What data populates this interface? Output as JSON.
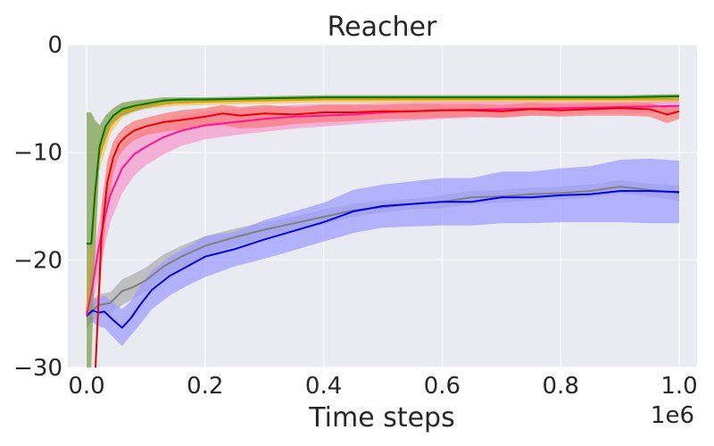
{
  "chart_data": {
    "type": "line",
    "title": "Reacher",
    "xlabel": "Time steps",
    "ylabel": "",
    "x_offset_text": "1e6",
    "xlim": [
      0,
      1000000
    ],
    "ylim": [
      -30,
      0
    ],
    "x_ticks": [
      0,
      200000,
      400000,
      600000,
      800000,
      1000000
    ],
    "x_tick_labels": [
      "0.0",
      "0.2",
      "0.4",
      "0.6",
      "0.8",
      "1.0"
    ],
    "y_ticks": [
      -30,
      -20,
      -10,
      0
    ],
    "y_tick_labels": [
      "−30",
      "−20",
      "−10",
      "0"
    ],
    "grid": true,
    "legend": "none",
    "series": [
      {
        "color": "#808080",
        "band_color": "#b0b0b0",
        "x": [
          0,
          20000,
          40000,
          60000,
          80000,
          100000,
          130000,
          160000,
          200000,
          250000,
          300000,
          350000,
          400000,
          450000,
          500000,
          550000,
          600000,
          650000,
          700000,
          750000,
          800000,
          850000,
          900000,
          950000,
          1000000
        ],
        "y": [
          -25.3,
          -24.2,
          -24.0,
          -22.9,
          -22.5,
          -21.9,
          -20.6,
          -19.7,
          -18.7,
          -17.9,
          -17.2,
          -16.6,
          -16.0,
          -15.4,
          -15.1,
          -14.8,
          -14.6,
          -14.2,
          -14.1,
          -13.9,
          -13.8,
          -13.6,
          -13.2,
          -13.5,
          -13.8
        ],
        "lower": [
          -26.3,
          -25.2,
          -25.0,
          -24.2,
          -23.6,
          -23.0,
          -21.6,
          -20.7,
          -19.6,
          -18.7,
          -17.9,
          -17.2,
          -16.7,
          -16.0,
          -15.6,
          -15.3,
          -15.2,
          -14.8,
          -14.7,
          -14.5,
          -14.4,
          -14.2,
          -13.8,
          -14.1,
          -14.5
        ],
        "upper": [
          -24.3,
          -23.2,
          -23.0,
          -21.8,
          -21.3,
          -20.7,
          -19.5,
          -18.7,
          -17.8,
          -17.1,
          -16.5,
          -16.0,
          -15.3,
          -14.8,
          -14.5,
          -14.3,
          -14.0,
          -13.6,
          -13.5,
          -13.3,
          -13.2,
          -13.0,
          -12.6,
          -12.9,
          -13.1
        ]
      },
      {
        "color": "#0000ee",
        "band_color": "#9d9dff",
        "x": [
          0,
          10000,
          20000,
          30000,
          45000,
          60000,
          75000,
          90000,
          110000,
          140000,
          170000,
          200000,
          250000,
          300000,
          350000,
          400000,
          450000,
          500000,
          550000,
          600000,
          650000,
          700000,
          750000,
          800000,
          850000,
          900000,
          950000,
          1000000
        ],
        "y": [
          -25.2,
          -24.7,
          -24.9,
          -24.8,
          -25.6,
          -26.3,
          -25.4,
          -24.2,
          -22.8,
          -21.5,
          -20.6,
          -19.7,
          -19.0,
          -18.1,
          -17.3,
          -16.5,
          -15.5,
          -15.0,
          -14.8,
          -14.6,
          -14.6,
          -14.2,
          -14.2,
          -14.0,
          -13.9,
          -13.6,
          -13.6,
          -13.7
        ],
        "lower": [
          -26.0,
          -25.8,
          -26.2,
          -26.3,
          -27.2,
          -28.0,
          -27.0,
          -26.0,
          -24.6,
          -23.3,
          -22.4,
          -21.6,
          -20.6,
          -19.9,
          -19.1,
          -18.3,
          -17.5,
          -17.0,
          -16.9,
          -16.8,
          -16.8,
          -16.6,
          -16.6,
          -16.5,
          -16.5,
          -16.5,
          -16.6,
          -16.6
        ],
        "upper": [
          -24.4,
          -23.6,
          -23.6,
          -23.3,
          -24.0,
          -24.6,
          -23.8,
          -22.4,
          -21.0,
          -19.7,
          -18.8,
          -17.8,
          -17.4,
          -16.3,
          -15.5,
          -14.7,
          -13.5,
          -13.0,
          -12.7,
          -12.4,
          -12.4,
          -11.8,
          -11.8,
          -11.5,
          -11.3,
          -10.7,
          -10.6,
          -10.8
        ]
      },
      {
        "color": "#e0a000",
        "band_color": "#f5c766",
        "x": [
          0,
          20000,
          40000,
          60000,
          80000,
          100000,
          150000,
          200000,
          300000,
          400000,
          500000,
          600000,
          700000,
          800000,
          900000,
          1000000
        ],
        "y": [
          -25.0,
          -10.5,
          -7.5,
          -6.3,
          -5.9,
          -5.6,
          -5.4,
          -5.3,
          -5.2,
          -5.1,
          -5.1,
          -5.1,
          -5.1,
          -5.1,
          -5.1,
          -5.1
        ],
        "lower": [
          -26.0,
          -12.0,
          -8.3,
          -6.8,
          -6.3,
          -6.0,
          -5.7,
          -5.6,
          -5.5,
          -5.4,
          -5.4,
          -5.4,
          -5.4,
          -5.4,
          -5.4,
          -5.4
        ],
        "upper": [
          -24.0,
          -9.0,
          -6.8,
          -5.8,
          -5.5,
          -5.2,
          -5.1,
          -5.0,
          -4.9,
          -4.8,
          -4.8,
          -4.8,
          -4.8,
          -4.8,
          -4.8,
          -4.8
        ]
      },
      {
        "color": "#ff1493",
        "band_color": "#f59bcb",
        "x": [
          0,
          10000,
          20000,
          30000,
          40000,
          60000,
          80000,
          100000,
          130000,
          160000,
          200000,
          250000,
          300000,
          350000,
          400000,
          450000,
          500000,
          600000,
          700000,
          800000,
          900000,
          1000000
        ],
        "y": [
          -25.2,
          -22.5,
          -19.0,
          -16.2,
          -14.0,
          -11.5,
          -10.2,
          -9.5,
          -8.6,
          -8.0,
          -7.5,
          -7.2,
          -6.9,
          -6.7,
          -6.6,
          -6.5,
          -6.3,
          -6.1,
          -6.0,
          -5.9,
          -5.8,
          -5.7
        ],
        "lower": [
          -26.5,
          -24.5,
          -21.5,
          -18.8,
          -16.5,
          -13.8,
          -12.2,
          -11.2,
          -10.2,
          -9.4,
          -8.8,
          -8.4,
          -8.1,
          -7.8,
          -7.6,
          -7.4,
          -7.2,
          -6.9,
          -6.7,
          -6.5,
          -6.4,
          -6.3
        ],
        "upper": [
          -24.0,
          -20.5,
          -16.8,
          -13.8,
          -11.6,
          -9.3,
          -8.3,
          -7.9,
          -7.1,
          -6.6,
          -6.2,
          -6.0,
          -5.8,
          -5.6,
          -5.5,
          -5.5,
          -5.4,
          -5.3,
          -5.3,
          -5.3,
          -5.3,
          -5.2
        ]
      },
      {
        "color": "#ee0000",
        "band_color": "#f77c7c",
        "x": [
          15000,
          25000,
          35000,
          45000,
          55000,
          65000,
          80000,
          100000,
          130000,
          160000,
          200000,
          230000,
          260000,
          300000,
          350000,
          400000,
          450000,
          500000,
          550000,
          600000,
          650000,
          700000,
          750000,
          800000,
          850000,
          900000,
          950000,
          980000,
          1000000
        ],
        "y": [
          -30.0,
          -18.0,
          -12.8,
          -10.5,
          -9.2,
          -8.6,
          -8.0,
          -7.6,
          -7.2,
          -7.0,
          -6.7,
          -6.4,
          -6.6,
          -6.4,
          -6.5,
          -6.3,
          -6.3,
          -6.2,
          -6.2,
          -6.1,
          -6.1,
          -6.2,
          -6.0,
          -6.1,
          -6.0,
          -5.9,
          -6.0,
          -6.5,
          -6.2
        ],
        "lower": [
          -30.0,
          -21.0,
          -15.0,
          -12.0,
          -10.3,
          -9.6,
          -8.9,
          -8.4,
          -8.1,
          -7.9,
          -7.6,
          -7.5,
          -7.8,
          -7.7,
          -7.4,
          -7.2,
          -7.1,
          -6.9,
          -6.9,
          -6.8,
          -6.7,
          -6.8,
          -6.6,
          -6.7,
          -6.6,
          -6.6,
          -6.7,
          -7.3,
          -6.9
        ],
        "upper": [
          -30.0,
          -15.0,
          -10.8,
          -9.0,
          -8.2,
          -7.6,
          -7.1,
          -6.8,
          -6.4,
          -6.1,
          -5.9,
          -5.6,
          -5.8,
          -5.6,
          -5.8,
          -5.6,
          -5.6,
          -5.6,
          -5.5,
          -5.5,
          -5.5,
          -5.6,
          -5.4,
          -5.5,
          -5.4,
          -5.4,
          -5.4,
          -5.8,
          -5.6
        ]
      },
      {
        "color": "#007700",
        "band_color": "#7ea050",
        "x": [
          0,
          8000,
          14000,
          22000,
          32000,
          45000,
          60000,
          80000,
          100000,
          130000,
          160000,
          200000,
          300000,
          400000,
          500000,
          600000,
          700000,
          800000,
          900000,
          1000000
        ],
        "y": [
          -18.5,
          -18.5,
          -14.0,
          -9.5,
          -7.6,
          -6.6,
          -6.0,
          -5.7,
          -5.5,
          -5.2,
          -5.1,
          -5.1,
          -5.0,
          -4.9,
          -4.9,
          -4.9,
          -4.9,
          -4.9,
          -4.9,
          -4.8
        ],
        "lower": [
          -30.0,
          -30.0,
          -20.0,
          -10.8,
          -8.5,
          -7.3,
          -6.6,
          -6.2,
          -5.9,
          -5.6,
          -5.4,
          -5.3,
          -5.2,
          -5.1,
          -5.1,
          -5.1,
          -5.1,
          -5.1,
          -5.1,
          -5.0
        ],
        "upper": [
          -6.3,
          -6.3,
          -7.0,
          -7.5,
          -6.6,
          -5.9,
          -5.4,
          -5.2,
          -5.1,
          -4.9,
          -4.9,
          -4.9,
          -4.8,
          -4.7,
          -4.7,
          -4.7,
          -4.7,
          -4.7,
          -4.7,
          -4.6
        ]
      }
    ]
  }
}
